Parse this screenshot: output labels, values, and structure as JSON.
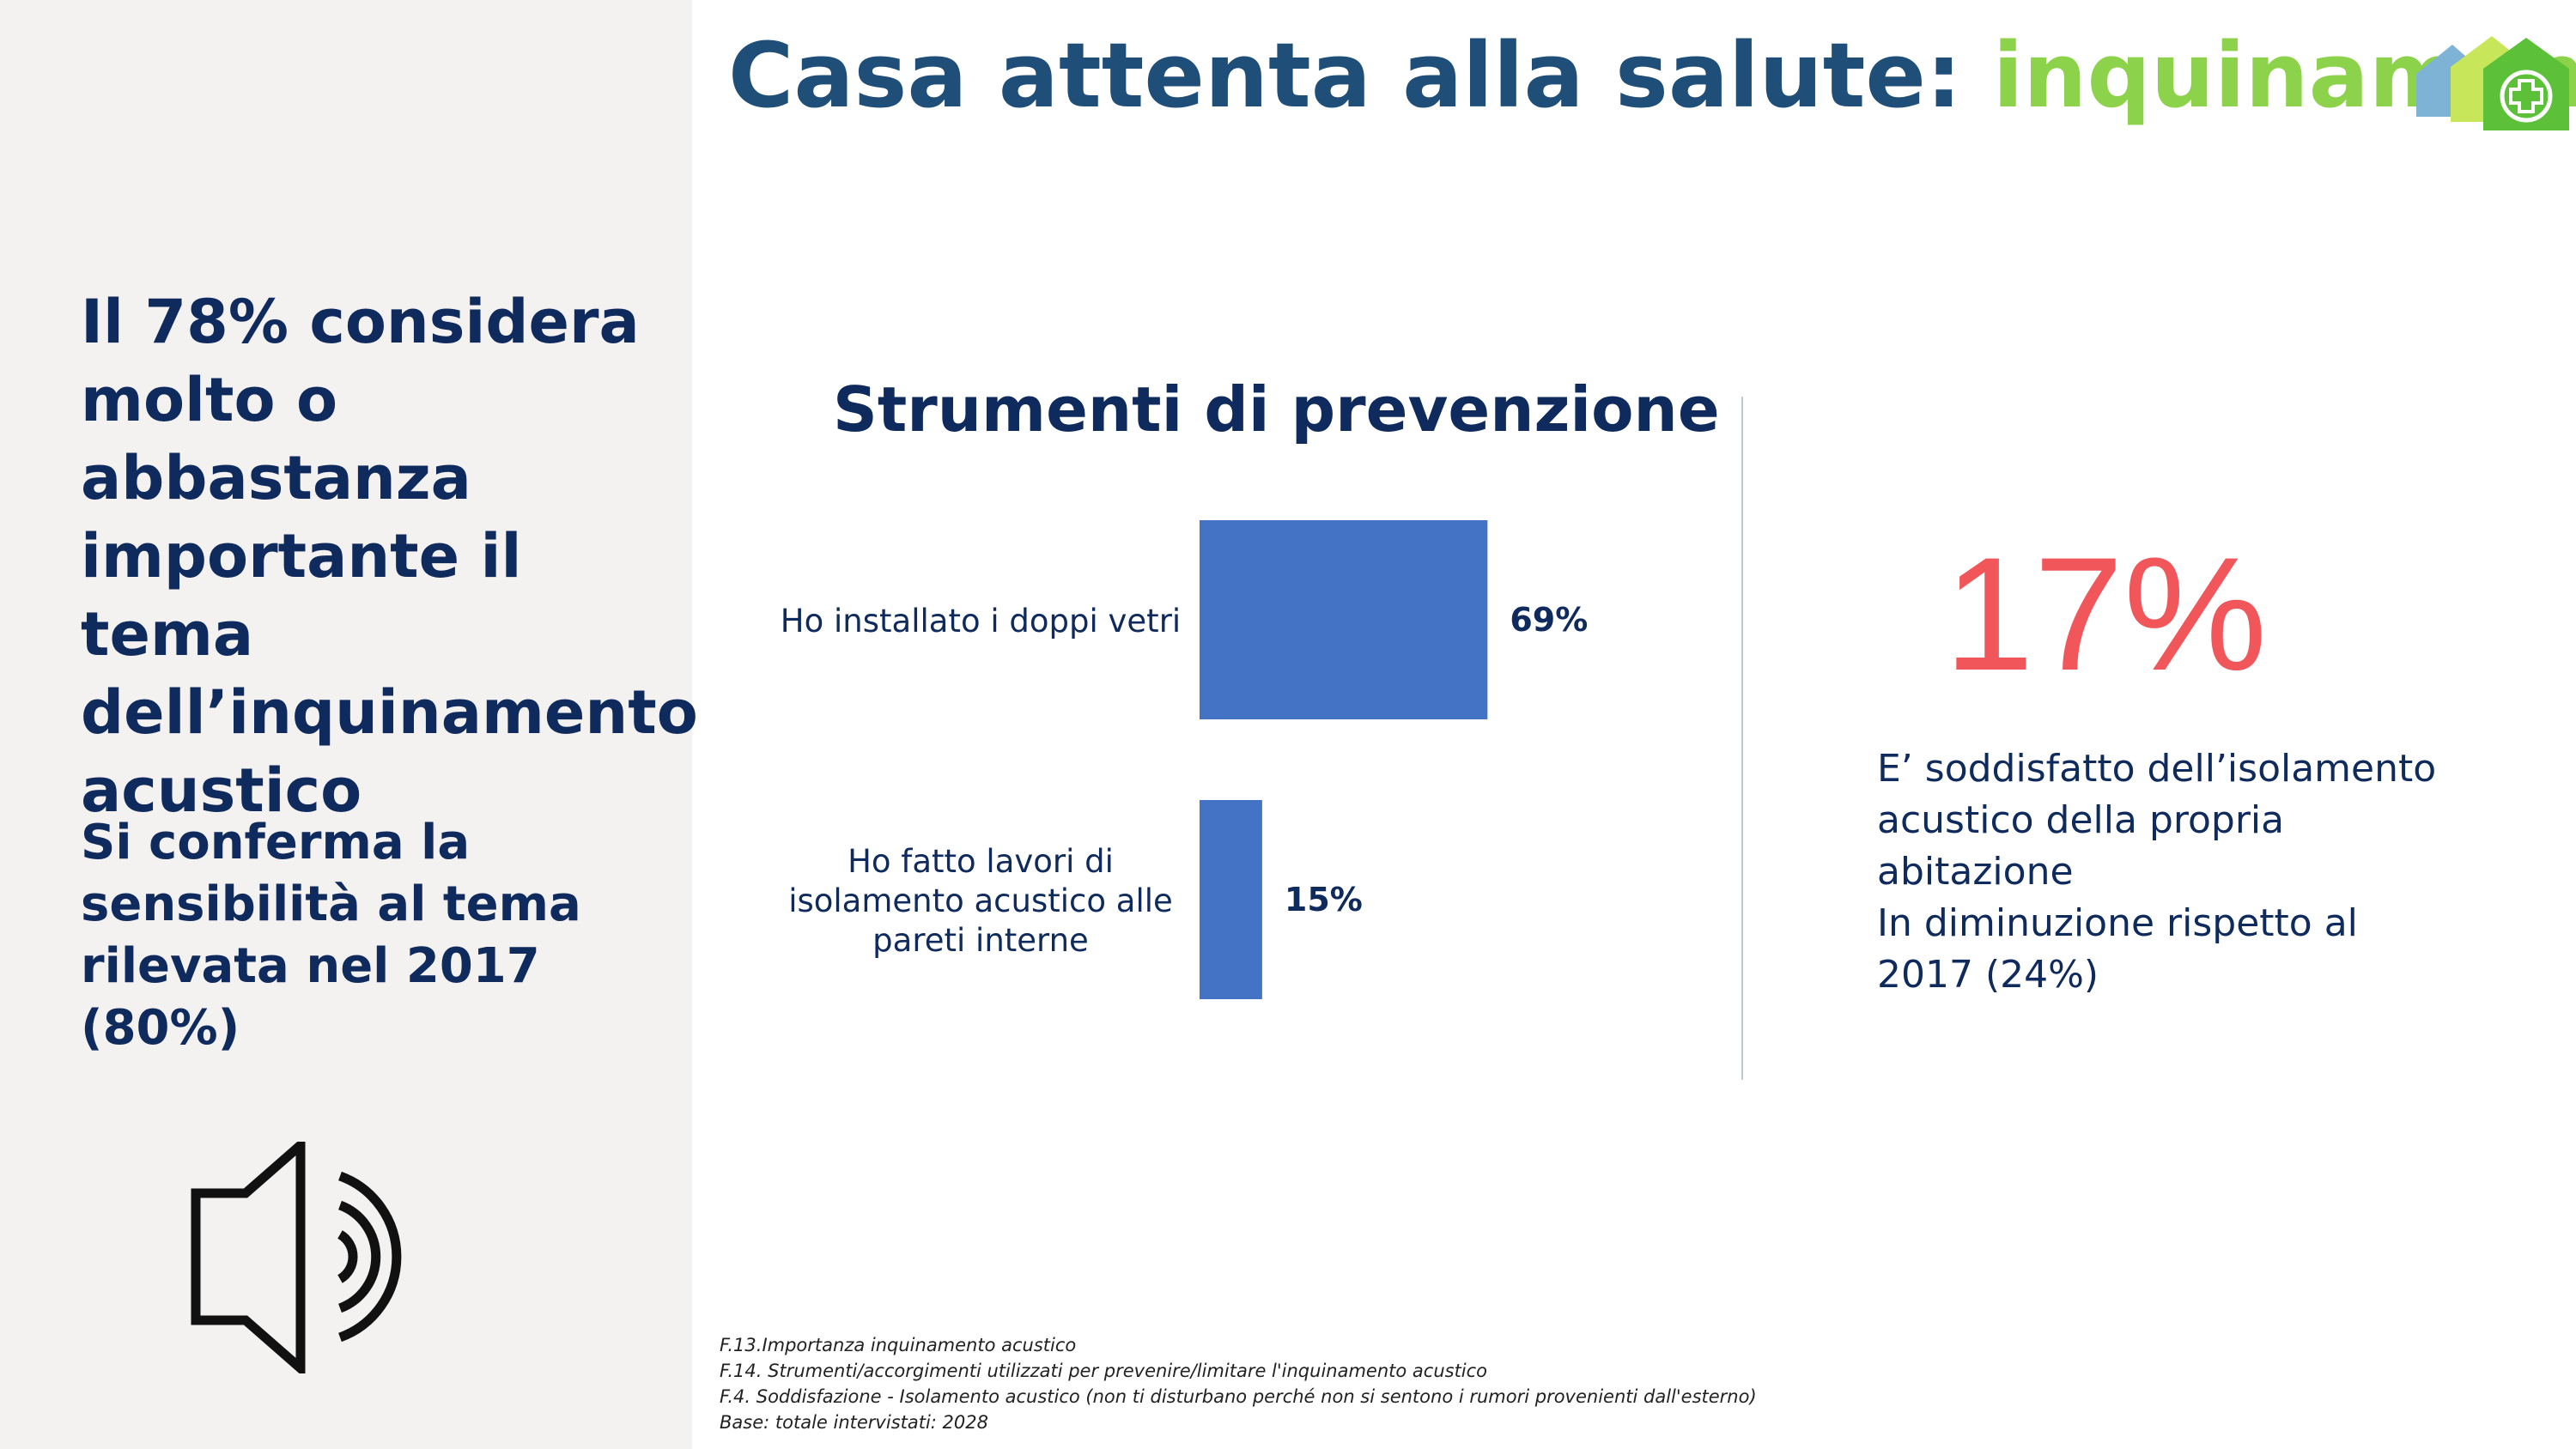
{
  "title": {
    "main": "Casa attenta alla salute:",
    "accent": "inquinamento"
  },
  "left_panel": {
    "headline": "Il 78% considera molto o abbastanza importante il tema dell’inquinamento acustico",
    "subline": "Si conferma la sensibilità al tema rilevata nel 2017 (80%)",
    "icon": "speaker-sound-icon"
  },
  "chart_data": {
    "type": "bar",
    "orientation": "horizontal",
    "title": "Strumenti di prevenzione",
    "categories": [
      "Ho installato i doppi vetri",
      "Ho fatto lavori di isolamento acustico alle pareti interne"
    ],
    "category_lines": [
      [
        "Ho installato i doppi vetri"
      ],
      [
        "Ho fatto lavori di",
        "isolamento acustico alle",
        "pareti interne"
      ]
    ],
    "values": [
      69,
      15
    ],
    "value_labels": [
      "69%",
      "15%"
    ],
    "xlim": [
      0,
      100
    ],
    "bar_color": "#4472c4",
    "grid": false,
    "legend": "none"
  },
  "stat": {
    "value": "17%",
    "lines": [
      "E’ soddisfatto dell’isolamento",
      "acustico della propria",
      "abitazione",
      "In diminuzione rispetto al",
      "2017 (24%)"
    ]
  },
  "footnotes": [
    "F.13.Importanza inquinamento acustico",
    "F.14. Strumenti/accorgimenti utilizzati per prevenire/limitare l'inquinamento acustico",
    "F.4. Soddisfazione - Isolamento acustico (non ti disturbano perché non si sentono i rumori provenienti dall'esterno)",
    "Base: totale intervistati: 2028"
  ],
  "colors": {
    "navy": "#0f2a5c",
    "title_blue": "#1f4e79",
    "accent_green": "#8cd24a",
    "stat_red": "#f0565a",
    "bar_blue": "#4472c4"
  },
  "logo": {
    "icon": "health-house-logo-icon"
  }
}
